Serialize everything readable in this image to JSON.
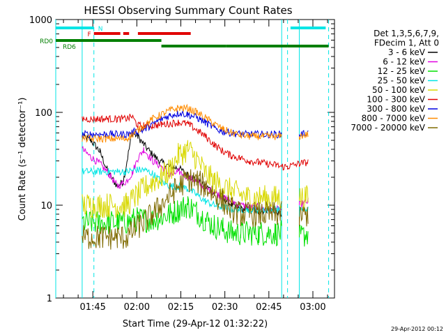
{
  "chart_data": {
    "type": "line",
    "title": "HESSI Observing Summary Count Rates",
    "xlabel": "Start Time (29-Apr-12 01:32:22)",
    "ylabel": "Count Rate (s⁻¹ detector⁻¹)",
    "yscale": "log",
    "ylim": [
      1,
      1000
    ],
    "y_ticks": [
      "1",
      "10",
      "100",
      "1000"
    ],
    "x_ticks": [
      "01:45",
      "02:00",
      "02:15",
      "02:30",
      "02:45",
      "03:00"
    ],
    "xlim_minutes": [
      0,
      95
    ],
    "grid": false,
    "legend": {
      "placement": "right",
      "header": [
        "Det 1,3,5,6,7,9,",
        "FDecim 1, Att 0"
      ]
    },
    "flags": [
      {
        "label": "N",
        "color": "#00e5e5",
        "segments": [
          [
            0,
            13
          ],
          [
            80,
            92
          ]
        ]
      },
      {
        "label": "F",
        "color": "#e00000",
        "segments": [
          [
            13,
            22
          ],
          [
            23,
            25
          ],
          [
            28,
            46
          ]
        ]
      },
      {
        "label": "RD0",
        "color": "#007f00",
        "segments": [
          [
            0,
            36
          ]
        ]
      },
      {
        "label": "RD6",
        "color": "#007f00",
        "segments": [
          [
            36,
            58
          ],
          [
            58,
            79
          ],
          [
            79,
            93
          ]
        ]
      }
    ],
    "gaps_minutes": [
      [
        0,
        9
      ],
      [
        77,
        83
      ]
    ],
    "night_markers_minutes": [
      13,
      79,
      93
    ],
    "series": [
      {
        "name": "3 - 6 keV",
        "color": "#000000",
        "x": [
          9,
          12,
          15,
          18,
          21,
          23,
          26,
          28,
          30,
          33,
          36,
          39,
          42,
          45,
          48,
          51,
          54,
          57,
          60,
          63,
          66,
          69,
          72,
          75,
          77
        ],
        "y": [
          55,
          50,
          38,
          22,
          16,
          18,
          60,
          55,
          45,
          35,
          29,
          26,
          25,
          21,
          19,
          16,
          14,
          12,
          10,
          9,
          9,
          8.5,
          9,
          8.5,
          8
        ]
      },
      {
        "name": "6 - 12 keV",
        "color": "#e000e0",
        "x": [
          9,
          12,
          15,
          18,
          21,
          24,
          26,
          28,
          30,
          33,
          36,
          39,
          42,
          45,
          48,
          51,
          54,
          57,
          60,
          63,
          66,
          69,
          72,
          75,
          77,
          83,
          86
        ],
        "y": [
          40,
          33,
          28,
          22,
          16,
          18,
          22,
          32,
          40,
          30,
          26,
          21,
          23,
          20,
          18,
          15,
          14,
          12,
          11,
          10,
          9.5,
          9.5,
          9,
          9,
          9,
          10,
          11
        ]
      },
      {
        "name": "12 - 25 keV",
        "color": "#00e000",
        "x": [
          9,
          12,
          15,
          18,
          21,
          24,
          27,
          30,
          33,
          36,
          39,
          42,
          45,
          48,
          51,
          54,
          57,
          60,
          63,
          66,
          69,
          72,
          75,
          77,
          83,
          86
        ],
        "y": [
          6.5,
          6.5,
          6.5,
          6.5,
          6.5,
          6.5,
          7,
          7,
          7,
          7.5,
          8,
          9,
          10,
          8.5,
          7,
          6,
          5.5,
          5,
          5,
          5,
          5,
          5,
          5,
          5,
          4.5,
          5
        ]
      },
      {
        "name": "25 - 50 keV",
        "color": "#00e5e5",
        "x": [
          9,
          12,
          15,
          18,
          21,
          24,
          27,
          30,
          33,
          36,
          39,
          42,
          45,
          48,
          51,
          54,
          57,
          60,
          63,
          66,
          69,
          72,
          75,
          77,
          83,
          86
        ],
        "y": [
          23,
          23,
          23,
          23,
          23,
          23,
          24,
          24,
          22,
          18,
          16,
          16,
          15,
          13,
          11,
          10,
          9.5,
          9,
          9,
          9,
          9,
          9,
          9,
          9,
          9,
          9
        ]
      },
      {
        "name": "50 - 100 keV",
        "color": "#d8d800",
        "x": [
          9,
          12,
          15,
          18,
          21,
          24,
          27,
          30,
          33,
          36,
          39,
          42,
          45,
          48,
          51,
          54,
          57,
          60,
          63,
          66,
          69,
          72,
          75,
          77,
          83,
          86
        ],
        "y": [
          10,
          10,
          10,
          10,
          10,
          10,
          12,
          15,
          18,
          20,
          24,
          35,
          40,
          32,
          22,
          18,
          16,
          14,
          13,
          12,
          12,
          12,
          12,
          12,
          12,
          12
        ]
      },
      {
        "name": "100 - 300 keV",
        "color": "#e00000",
        "x": [
          9,
          12,
          15,
          18,
          21,
          24,
          26,
          28,
          30,
          33,
          36,
          39,
          42,
          45,
          48,
          51,
          54,
          57,
          60,
          63,
          66,
          69,
          72,
          75,
          77,
          79,
          83,
          86
        ],
        "y": [
          85,
          85,
          85,
          85,
          85,
          85,
          90,
          72,
          72,
          72,
          74,
          76,
          78,
          75,
          65,
          55,
          45,
          38,
          34,
          32,
          30,
          29,
          28,
          27,
          26,
          26,
          28,
          29
        ]
      },
      {
        "name": "300 - 800 keV",
        "color": "#0000e0",
        "x": [
          9,
          12,
          15,
          18,
          21,
          24,
          27,
          30,
          33,
          36,
          39,
          42,
          45,
          48,
          51,
          54,
          57,
          60,
          63,
          66,
          69,
          72,
          75,
          77,
          83,
          86
        ],
        "y": [
          58,
          58,
          58,
          58,
          58,
          58,
          62,
          65,
          75,
          85,
          93,
          98,
          95,
          88,
          78,
          68,
          62,
          60,
          58,
          58,
          58,
          58,
          58,
          58,
          58,
          60
        ]
      },
      {
        "name": "800 - 7000 keV",
        "color": "#ff8c00",
        "x": [
          9,
          12,
          15,
          18,
          21,
          24,
          27,
          30,
          33,
          36,
          39,
          42,
          45,
          48,
          51,
          54,
          57,
          60,
          63,
          66,
          69,
          72,
          75,
          77,
          83,
          86
        ],
        "y": [
          52,
          52,
          52,
          52,
          52,
          52,
          60,
          72,
          85,
          95,
          105,
          112,
          110,
          100,
          88,
          75,
          66,
          60,
          57,
          55,
          55,
          55,
          55,
          55,
          55,
          58
        ]
      },
      {
        "name": "7000 - 20000 keV",
        "color": "#7f6a00",
        "x": [
          9,
          12,
          15,
          18,
          21,
          24,
          27,
          30,
          33,
          36,
          39,
          42,
          45,
          48,
          51,
          54,
          57,
          60,
          63,
          66,
          69,
          72,
          75,
          77,
          83,
          86
        ],
        "y": [
          4.5,
          4.5,
          4.5,
          4.5,
          4.5,
          4.5,
          5.5,
          6.5,
          8,
          10,
          13,
          16,
          19,
          18,
          16,
          13,
          11,
          9,
          8,
          8,
          8,
          8,
          8,
          8,
          7.5,
          8
        ]
      }
    ]
  },
  "timestamp": "29-Apr-2012 00:12"
}
